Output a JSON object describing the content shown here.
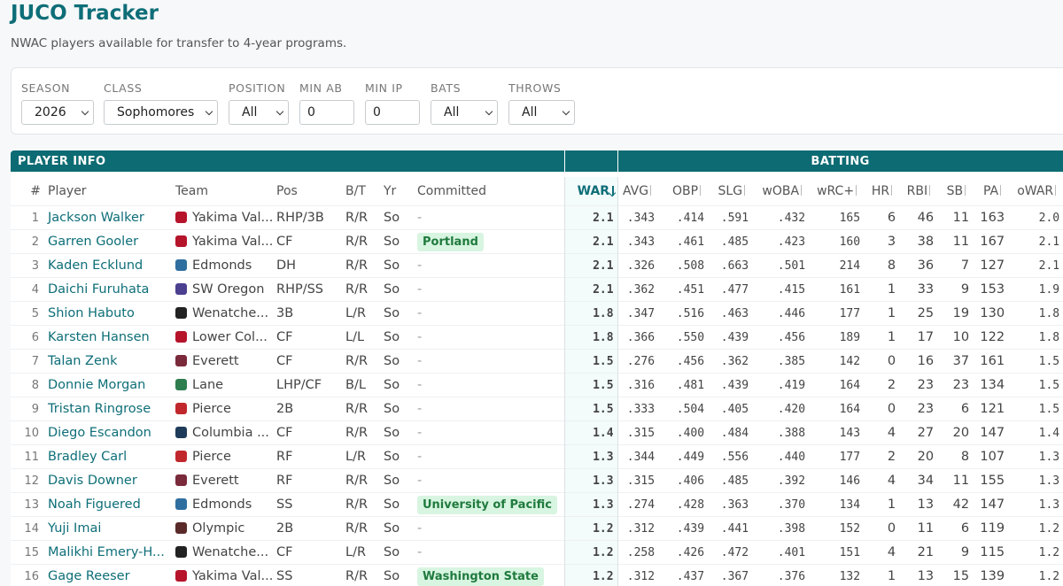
{
  "header": {
    "title": "JUCO Tracker",
    "subtitle": "NWAC players available for transfer to 4-year programs."
  },
  "filters": [
    {
      "label": "SEASON",
      "value": "2026"
    },
    {
      "label": "CLASS",
      "value": "Sophomores"
    },
    {
      "label": "POSITION",
      "value": "All"
    },
    {
      "label": "MIN AB",
      "value": "0"
    },
    {
      "label": "MIN IP",
      "value": "0"
    },
    {
      "label": "BATS",
      "value": "All"
    },
    {
      "label": "THROWS",
      "value": "All"
    }
  ],
  "table": {
    "groups": [
      "PLAYER INFO",
      "BATTING"
    ],
    "columns": [
      "#",
      "Player",
      "Team",
      "Pos",
      "B/T",
      "Yr",
      "Committed",
      "WAR",
      "AVG",
      "OBP",
      "SLG",
      "wOBA",
      "wRC+",
      "HR",
      "RBI",
      "SB",
      "PA",
      "oWAR"
    ],
    "rows": [
      [
        "1",
        "Jackson Walker",
        "Yakima Val...",
        "RHP/3B",
        "R/R",
        "So",
        "-",
        "2.1",
        ".343",
        ".414",
        ".591",
        ".432",
        "165",
        "6",
        "46",
        "11",
        "163",
        "2.0"
      ],
      [
        "2",
        "Garren Gooler",
        "Yakima Val...",
        "CF",
        "R/R",
        "So",
        "Portland",
        "2.1",
        ".343",
        ".461",
        ".485",
        ".423",
        "160",
        "3",
        "38",
        "11",
        "167",
        "2.1"
      ],
      [
        "3",
        "Kaden Ecklund",
        "Edmonds",
        "DH",
        "R/R",
        "So",
        "-",
        "2.1",
        ".326",
        ".508",
        ".663",
        ".501",
        "214",
        "8",
        "36",
        "7",
        "127",
        "2.1"
      ],
      [
        "4",
        "Daichi Furuhata",
        "SW Oregon",
        "RHP/SS",
        "R/R",
        "So",
        "-",
        "2.1",
        ".362",
        ".451",
        ".477",
        ".415",
        "161",
        "1",
        "33",
        "9",
        "153",
        "1.9"
      ],
      [
        "5",
        "Shion Habuto",
        "Wenatche...",
        "3B",
        "L/R",
        "So",
        "-",
        "1.8",
        ".347",
        ".516",
        ".463",
        ".446",
        "177",
        "1",
        "25",
        "19",
        "130",
        "1.8"
      ],
      [
        "6",
        "Karsten Hansen",
        "Lower Col...",
        "CF",
        "L/L",
        "So",
        "-",
        "1.8",
        ".366",
        ".550",
        ".439",
        ".456",
        "189",
        "1",
        "17",
        "10",
        "122",
        "1.8"
      ],
      [
        "7",
        "Talan Zenk",
        "Everett",
        "CF",
        "R/R",
        "So",
        "-",
        "1.5",
        ".276",
        ".456",
        ".362",
        ".385",
        "142",
        "0",
        "16",
        "37",
        "161",
        "1.5"
      ],
      [
        "8",
        "Donnie Morgan",
        "Lane",
        "LHP/CF",
        "B/L",
        "So",
        "-",
        "1.5",
        ".316",
        ".481",
        ".439",
        ".419",
        "164",
        "2",
        "23",
        "23",
        "134",
        "1.5"
      ],
      [
        "9",
        "Tristan Ringrose",
        "Pierce",
        "2B",
        "R/R",
        "So",
        "-",
        "1.5",
        ".333",
        ".504",
        ".405",
        ".420",
        "164",
        "0",
        "23",
        "6",
        "121",
        "1.5"
      ],
      [
        "10",
        "Diego Escandon",
        "Columbia ...",
        "CF",
        "R/R",
        "So",
        "-",
        "1.4",
        ".315",
        ".400",
        ".484",
        ".388",
        "143",
        "4",
        "27",
        "20",
        "147",
        "1.4"
      ],
      [
        "11",
        "Bradley Carl",
        "Pierce",
        "RF",
        "L/R",
        "So",
        "-",
        "1.3",
        ".344",
        ".449",
        ".556",
        ".440",
        "177",
        "2",
        "20",
        "8",
        "107",
        "1.3"
      ],
      [
        "12",
        "Davis Downer",
        "Everett",
        "RF",
        "R/R",
        "So",
        "-",
        "1.3",
        ".315",
        ".406",
        ".485",
        ".392",
        "146",
        "4",
        "34",
        "11",
        "155",
        "1.3"
      ],
      [
        "13",
        "Noah Figuered",
        "Edmonds",
        "SS",
        "R/R",
        "So",
        "University of Pacific",
        "1.3",
        ".274",
        ".428",
        ".363",
        ".370",
        "134",
        "1",
        "13",
        "42",
        "147",
        "1.3"
      ],
      [
        "14",
        "Yuji Imai",
        "Olympic",
        "2B",
        "R/R",
        "So",
        "-",
        "1.2",
        ".312",
        ".439",
        ".441",
        ".398",
        "152",
        "0",
        "11",
        "6",
        "119",
        "1.2"
      ],
      [
        "15",
        "Malikhi Emery-H...",
        "Wenatche...",
        "CF",
        "L/R",
        "So",
        "-",
        "1.2",
        ".258",
        ".426",
        ".472",
        ".401",
        "151",
        "4",
        "21",
        "9",
        "115",
        "1.2"
      ],
      [
        "16",
        "Gage Reeser",
        "Yakima Val...",
        "SS",
        "R/R",
        "So",
        "Washington State",
        "1.2",
        ".312",
        ".437",
        ".367",
        ".376",
        "132",
        "1",
        "13",
        "15",
        "139",
        "1.2"
      ]
    ]
  }
}
